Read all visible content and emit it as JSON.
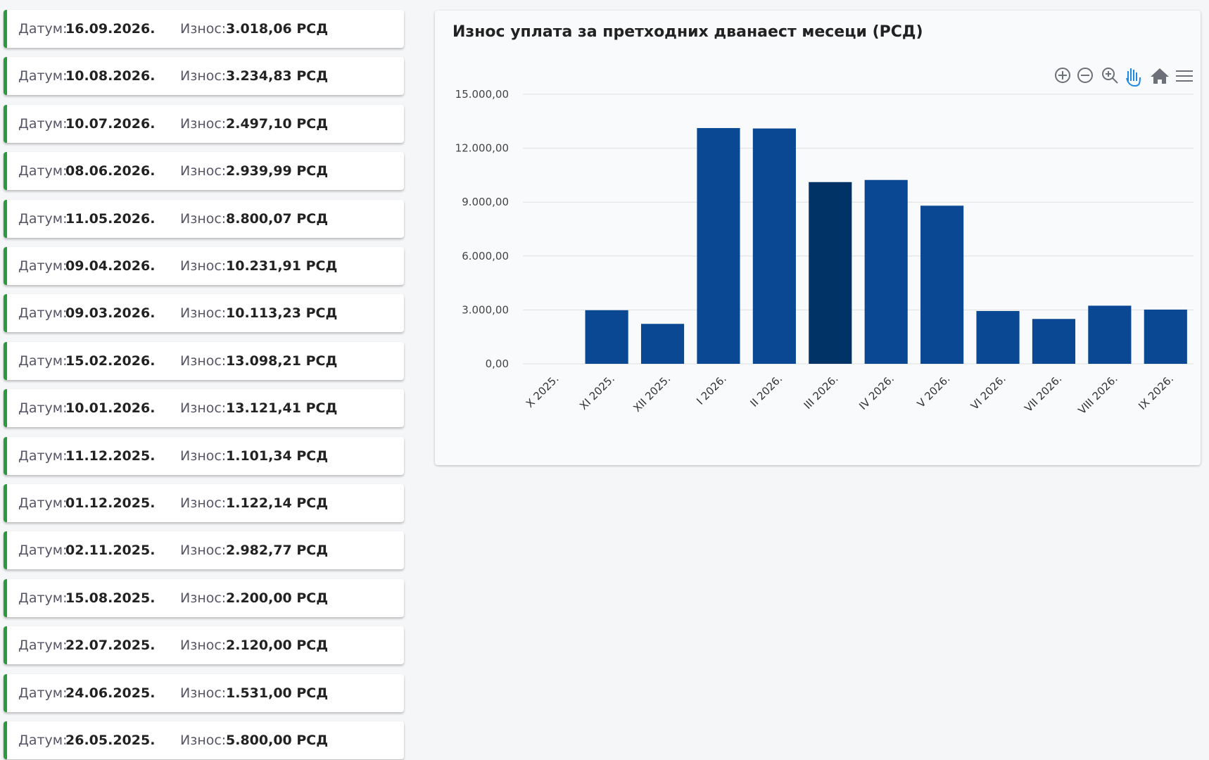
{
  "payments": {
    "date_label": "Датум:",
    "amount_label": "Износ:",
    "rows": [
      [
        "16.09.2026.",
        "3.018,06 РСД"
      ],
      [
        "10.08.2026.",
        "3.234,83 РСД"
      ],
      [
        "10.07.2026.",
        "2.497,10 РСД"
      ],
      [
        "08.06.2026.",
        "2.939,99 РСД"
      ],
      [
        "11.05.2026.",
        "8.800,07 РСД"
      ],
      [
        "09.04.2026.",
        "10.231,91 РСД"
      ],
      [
        "09.03.2026.",
        "10.113,23 РСД"
      ],
      [
        "15.02.2026.",
        "13.098,21 РСД"
      ],
      [
        "10.01.2026.",
        "13.121,41 РСД"
      ],
      [
        "11.12.2025.",
        "1.101,34 РСД"
      ],
      [
        "01.12.2025.",
        "1.122,14 РСД"
      ],
      [
        "02.11.2025.",
        "2.982,77 РСД"
      ],
      [
        "15.08.2025.",
        "2.200,00 РСД"
      ],
      [
        "22.07.2025.",
        "2.120,00 РСД"
      ],
      [
        "24.06.2025.",
        "1.531,00 РСД"
      ],
      [
        "26.05.2025.",
        "5.800,00 РСД"
      ]
    ]
  },
  "chart_data": {
    "type": "bar",
    "title": "Износ уплата за претходних дванаест месеци (РСД)",
    "categories": [
      "X 2025.",
      "XI 2025.",
      "XII 2025.",
      "I 2026.",
      "II 2026.",
      "III 2026.",
      "IV 2026.",
      "V 2026.",
      "VI 2026.",
      "VII 2026.",
      "VIII 2026.",
      "IX 2026."
    ],
    "values": [
      0,
      2982.77,
      2223.48,
      13121.41,
      13098.21,
      10113.23,
      10231.91,
      8800.07,
      2939.99,
      2497.1,
      3234.83,
      3018.06
    ],
    "colors": [
      "#0b4893",
      "#0b4893",
      "#0b4893",
      "#0b4893",
      "#0b4893",
      "#023366",
      "#0b4893",
      "#0b4893",
      "#0b4893",
      "#0b4893",
      "#0b4893",
      "#0b4893"
    ],
    "ylim": [
      0,
      15000
    ],
    "yticks": [
      {
        "value": 0,
        "label": "0,00"
      },
      {
        "value": 3000,
        "label": "3.000,00"
      },
      {
        "value": 6000,
        "label": "6.000,00"
      },
      {
        "value": 9000,
        "label": "9.000,00"
      },
      {
        "value": 12000,
        "label": "12.000,00"
      },
      {
        "value": 15000,
        "label": "15.000,00"
      }
    ],
    "grid": true
  }
}
